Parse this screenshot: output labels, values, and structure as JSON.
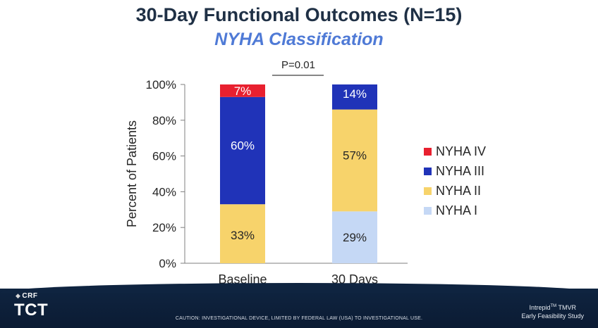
{
  "title": "30-Day Functional Outcomes (N=15)",
  "subtitle": "NYHA Classification",
  "footer": {
    "crf": "CRF",
    "tct": "TCT",
    "caution": "CAUTION: INVESTIGATIONAL DEVICE, LIMITED BY FEDERAL LAW (USA) TO INVESTIGATIONAL USE.",
    "study_name": "Intrepid",
    "study_tm": "TM",
    "study_rest": " TMVR",
    "study_line2": "Early Feasibility Study"
  },
  "chart_data": {
    "type": "bar",
    "stacked": true,
    "categories": [
      "Baseline",
      "30 Days"
    ],
    "ylabel": "Percent of Patients",
    "ylim": [
      0,
      100
    ],
    "yticks": [
      "0%",
      "20%",
      "40%",
      "60%",
      "80%",
      "100%"
    ],
    "legend_position": "right",
    "annotation": "P=0.01",
    "series": [
      {
        "name": "NYHA I",
        "color": "#c5d8f5",
        "values": [
          0,
          29
        ],
        "labels": [
          "",
          "29%"
        ]
      },
      {
        "name": "NYHA II",
        "color": "#f7d36b",
        "values": [
          33,
          57
        ],
        "labels": [
          "33%",
          "57%"
        ]
      },
      {
        "name": "NYHA III",
        "color": "#2033b8",
        "values": [
          60,
          14
        ],
        "labels": [
          "60%",
          "14%"
        ]
      },
      {
        "name": "NYHA IV",
        "color": "#e8202f",
        "values": [
          7,
          0
        ],
        "labels": [
          "7%",
          ""
        ]
      }
    ]
  }
}
